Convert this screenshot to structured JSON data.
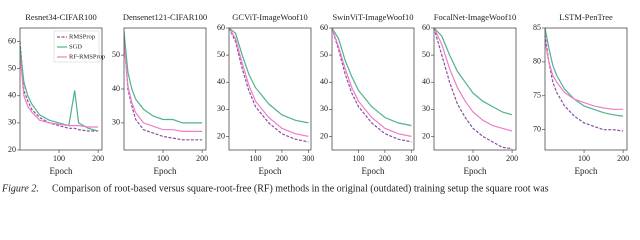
{
  "chart_data": [
    {
      "type": "line",
      "title": "Resnet34-CIFAR100",
      "xlabel": "Epoch",
      "legend": "upper right",
      "x": [
        0,
        10,
        20,
        30,
        50,
        75,
        100,
        125,
        140,
        150,
        175,
        200
      ],
      "xlim": [
        0,
        210
      ],
      "xticks": [
        100,
        200
      ],
      "ylim": [
        20,
        65
      ],
      "yticks": [
        20,
        30,
        40,
        50,
        60
      ],
      "series": [
        {
          "name": "RMSProp",
          "color": "#8a4f9e",
          "dashed": true,
          "values": [
            60,
            42,
            38,
            35,
            32,
            30,
            29,
            28,
            28,
            27.5,
            27,
            27
          ]
        },
        {
          "name": "SGD",
          "color": "#4fb38a",
          "dashed": false,
          "values": [
            58,
            45,
            40,
            37,
            33,
            31,
            30,
            29,
            42,
            30,
            28,
            27
          ]
        },
        {
          "name": "RF-RMSProp",
          "color": "#f07cc8",
          "dashed": false,
          "values": [
            55,
            40,
            36,
            34,
            31,
            30,
            29.5,
            29,
            29,
            29,
            28.5,
            28.5
          ]
        }
      ]
    },
    {
      "type": "line",
      "title": "Densenet121-CIFAR100",
      "x": [
        0,
        10,
        20,
        30,
        50,
        75,
        100,
        125,
        150,
        175,
        200
      ],
      "xlim": [
        0,
        210
      ],
      "xticks": [
        100,
        200
      ],
      "ylim": [
        22,
        58
      ],
      "yticks": [
        30,
        40,
        50
      ],
      "series": [
        {
          "name": "RMSProp",
          "color": "#8a4f9e",
          "dashed": true,
          "values": [
            55,
            40,
            35,
            31,
            28,
            27,
            26,
            25.5,
            25,
            25,
            25
          ]
        },
        {
          "name": "SGD",
          "color": "#4fb38a",
          "dashed": false,
          "values": [
            57,
            45,
            40,
            37,
            34,
            32,
            31,
            31,
            30,
            30,
            30
          ]
        },
        {
          "name": "RF-RMSProp",
          "color": "#f07cc8",
          "dashed": false,
          "values": [
            54,
            41,
            36,
            33,
            30,
            29,
            28,
            28,
            27.5,
            27.5,
            27.5
          ]
        }
      ]
    },
    {
      "type": "line",
      "title": "GCViT-ImageWoof10",
      "x": [
        0,
        25,
        50,
        75,
        100,
        150,
        200,
        250,
        300
      ],
      "xlim": [
        0,
        310
      ],
      "xticks": [
        100,
        200,
        300
      ],
      "ylim": [
        15,
        60
      ],
      "yticks": [
        20,
        30,
        40,
        50,
        60
      ],
      "series": [
        {
          "name": "RMSProp",
          "color": "#8a4f9e",
          "dashed": true,
          "values": [
            60,
            55,
            45,
            37,
            31,
            25,
            21,
            19,
            18
          ]
        },
        {
          "name": "SGD",
          "color": "#4fb38a",
          "dashed": false,
          "values": [
            60,
            58,
            50,
            43,
            38,
            32,
            28,
            26,
            25
          ]
        },
        {
          "name": "RF-RMSProp",
          "color": "#f07cc8",
          "dashed": false,
          "values": [
            60,
            56,
            47,
            39,
            33,
            27,
            23,
            21,
            20
          ]
        }
      ]
    },
    {
      "type": "line",
      "title": "SwinViT-ImageWoof10",
      "x": [
        0,
        25,
        50,
        75,
        100,
        150,
        200,
        250,
        300
      ],
      "xlim": [
        0,
        310
      ],
      "xticks": [
        100,
        200,
        300
      ],
      "ylim": [
        15,
        60
      ],
      "yticks": [
        20,
        30,
        40,
        50,
        60
      ],
      "series": [
        {
          "name": "RMSProp",
          "color": "#8a4f9e",
          "dashed": true,
          "values": [
            60,
            52,
            43,
            36,
            31,
            25,
            21,
            19,
            18
          ]
        },
        {
          "name": "SGD",
          "color": "#4fb38a",
          "dashed": false,
          "values": [
            60,
            56,
            48,
            42,
            37,
            31,
            27,
            25,
            24
          ]
        },
        {
          "name": "RF-RMSProp",
          "color": "#f07cc8",
          "dashed": false,
          "values": [
            60,
            53,
            45,
            38,
            33,
            27,
            23,
            21,
            20
          ]
        }
      ]
    },
    {
      "type": "line",
      "title": "FocalNet-ImageWoof10",
      "x": [
        0,
        20,
        40,
        60,
        80,
        100,
        125,
        150,
        175,
        200
      ],
      "xlim": [
        0,
        210
      ],
      "xticks": [
        100,
        200
      ],
      "ylim": [
        15,
        60
      ],
      "yticks": [
        20,
        30,
        40,
        50,
        60
      ],
      "series": [
        {
          "name": "RMSProp",
          "color": "#8a4f9e",
          "dashed": true,
          "values": [
            60,
            50,
            40,
            32,
            27,
            23,
            20,
            18,
            16,
            15.5
          ]
        },
        {
          "name": "SGD",
          "color": "#4fb38a",
          "dashed": false,
          "values": [
            60,
            57,
            50,
            44,
            40,
            36,
            33,
            31,
            29,
            28
          ]
        },
        {
          "name": "RF-RMSProp",
          "color": "#f07cc8",
          "dashed": false,
          "values": [
            60,
            54,
            45,
            38,
            33,
            29,
            26,
            24,
            23,
            22
          ]
        }
      ]
    },
    {
      "type": "line",
      "title": "LSTM-PenTree",
      "x": [
        0,
        10,
        20,
        30,
        50,
        75,
        100,
        125,
        150,
        175,
        200
      ],
      "xlim": [
        0,
        210
      ],
      "xticks": [
        100,
        200
      ],
      "ylim": [
        67,
        85
      ],
      "yticks": [
        70,
        75,
        80,
        85
      ],
      "series": [
        {
          "name": "RMSProp",
          "color": "#8a4f9e",
          "dashed": true,
          "values": [
            84,
            80,
            77,
            75.5,
            73.5,
            72,
            71,
            70.5,
            70,
            70,
            69.8
          ]
        },
        {
          "name": "SGD",
          "color": "#4fb38a",
          "dashed": false,
          "values": [
            85,
            82,
            79.5,
            78,
            76,
            74.5,
            73.5,
            73,
            72.5,
            72.2,
            72
          ]
        },
        {
          "name": "RF-RMSProp",
          "color": "#f07cc8",
          "dashed": false,
          "values": [
            83,
            80,
            78,
            77,
            75.5,
            74.5,
            74,
            73.5,
            73.2,
            73,
            73
          ]
        }
      ]
    }
  ],
  "caption_label": "Figure 2.",
  "caption": "Comparison of root-based versus square-root-free (RF) methods in the original (outdated) training setup the square root was"
}
